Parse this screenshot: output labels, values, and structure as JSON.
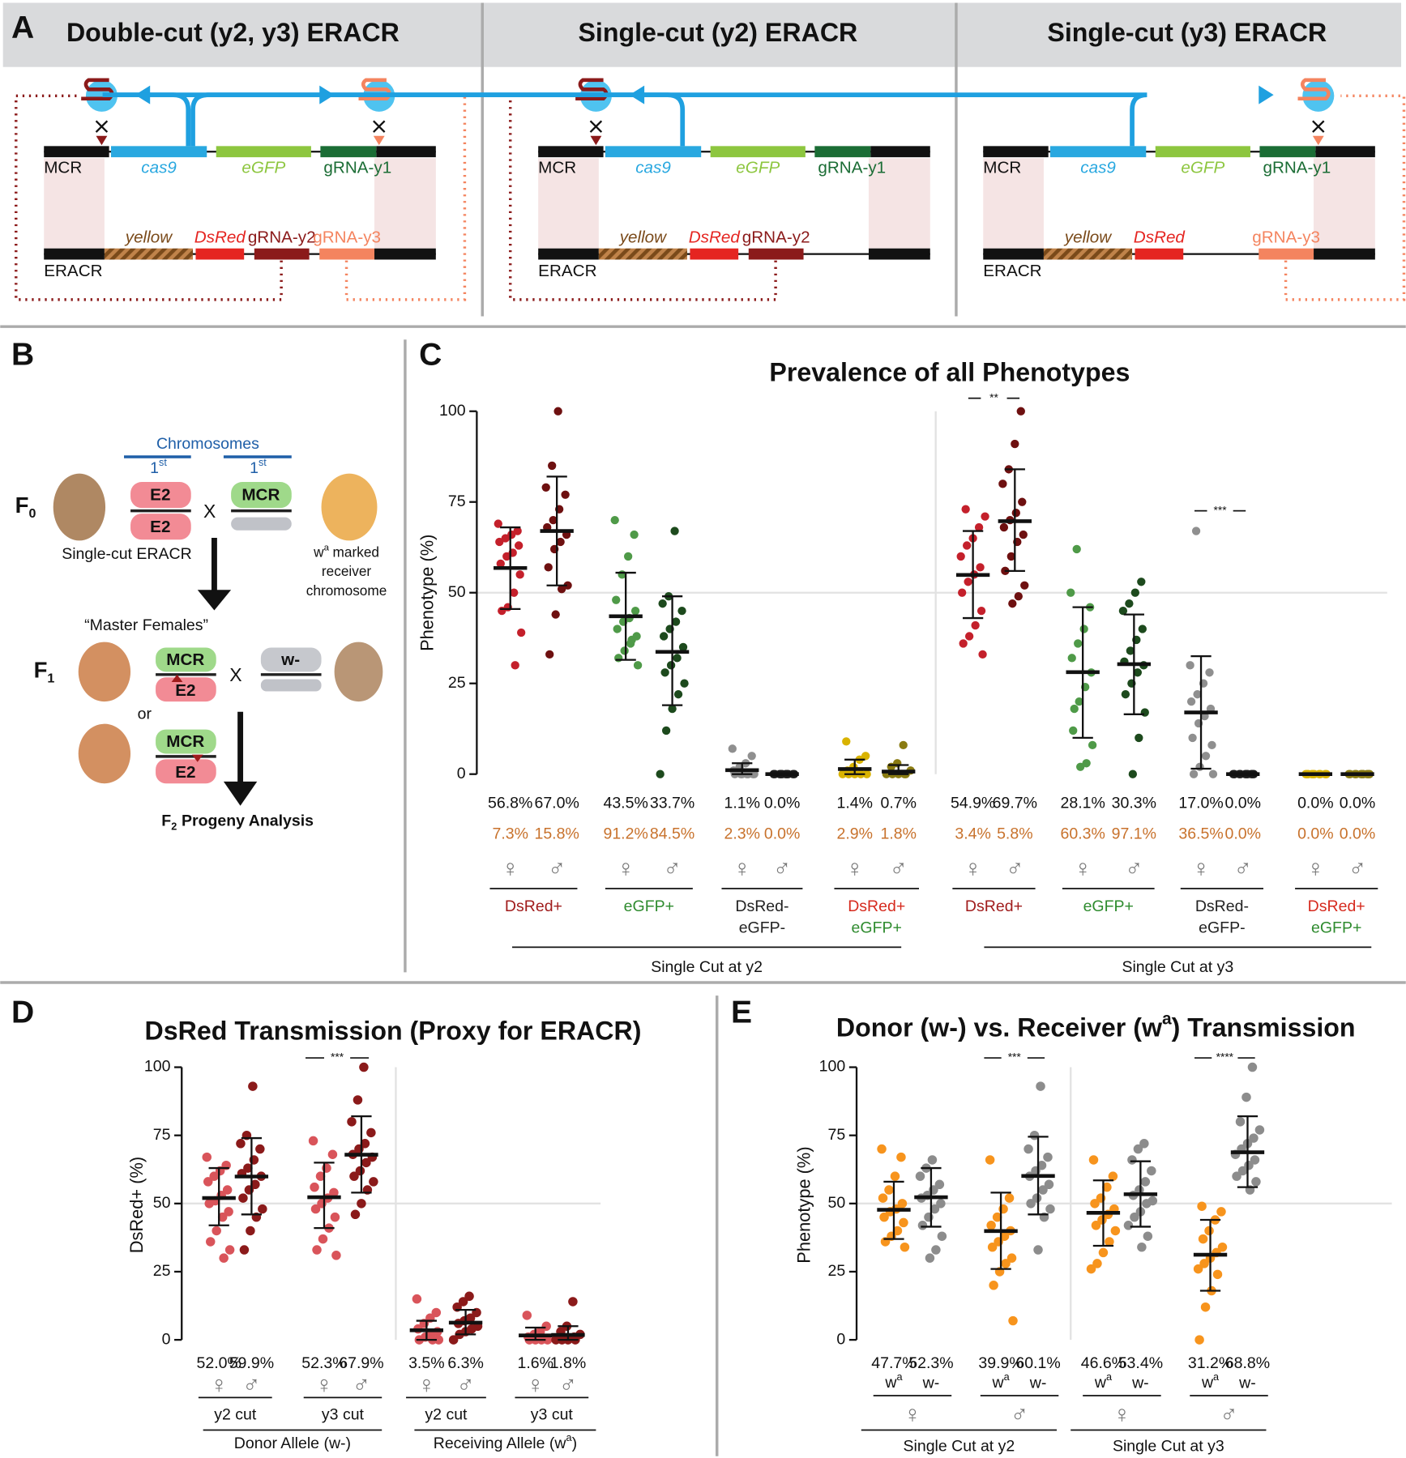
{
  "panel_a": {
    "label": "A",
    "panels": [
      {
        "title": "Double-cut (y2, y3) ERACR",
        "top_label": "MCR",
        "top_genes": [
          "cas9",
          "eGFP",
          "gRNA-y1"
        ],
        "bottom_label": "ERACR",
        "bottom_genes": [
          "yellow",
          "DsRed",
          "gRNA-y2",
          "gRNA-y3"
        ]
      },
      {
        "title": "Single-cut (y2) ERACR",
        "top_label": "MCR",
        "top_genes": [
          "cas9",
          "eGFP",
          "gRNA-y1"
        ],
        "bottom_label": "ERACR",
        "bottom_genes": [
          "yellow",
          "DsRed",
          "gRNA-y2",
          null
        ]
      },
      {
        "title": "Single-cut (y3) ERACR",
        "top_label": "MCR",
        "top_genes": [
          "cas9",
          "eGFP",
          "gRNA-y1"
        ],
        "bottom_label": "ERACR",
        "bottom_genes": [
          "yellow",
          "DsRed",
          null,
          "gRNA-y3"
        ]
      }
    ]
  },
  "panel_b": {
    "label": "B",
    "header": "Chromosomes",
    "ordinals": [
      [
        "1",
        "st"
      ],
      [
        "1",
        "st"
      ]
    ],
    "f0": [
      "F",
      "0"
    ],
    "f1": [
      "F",
      "1"
    ],
    "f2": [
      "F",
      "2",
      "Progeny Analysis"
    ],
    "e2": "E2",
    "mcr": "MCR",
    "cross": "X",
    "w_minus": "w-",
    "left_caption": "Single-cut ERACR",
    "right_caption": [
      "w",
      "a",
      "marked",
      "receiver",
      "chromosome"
    ],
    "master": "“Master Females”",
    "or": "or"
  },
  "chart_data": [
    {
      "type": "strip",
      "panel_label": "C",
      "title": "Prevalence of all Phenotypes",
      "ylabel": "Phenotype (%)",
      "ylim": [
        0,
        100
      ],
      "yticks": [
        0,
        25,
        50,
        75,
        100
      ],
      "reference_line": 50,
      "categories": [
        "♀",
        "♂",
        "♀",
        "♂",
        "♀",
        "♂",
        "♀",
        "♂",
        "♀",
        "♂",
        "♀",
        "♂",
        "♀",
        "♂",
        "♀",
        "♂"
      ],
      "colors": [
        "#c4202b",
        "#6e1010",
        "#4f9a48",
        "#1d4a1d",
        "#8f8f8f",
        "#1a1a1a",
        "#d9b300",
        "#8a7b12",
        "#c4202b",
        "#6e1010",
        "#4f9a48",
        "#1d4a1d",
        "#8f8f8f",
        "#1a1a1a",
        "#d9b300",
        "#8a7b12"
      ],
      "values": [
        56.8,
        67.0,
        43.5,
        33.7,
        1.1,
        0.0,
        1.4,
        0.7,
        54.9,
        69.7,
        28.1,
        30.3,
        17.0,
        0.0,
        0.0,
        0.0
      ],
      "value_labels": [
        "56.8%",
        "67.0%",
        "43.5%",
        "33.7%",
        "1.1%",
        "0.0%",
        "1.4%",
        "0.7%",
        "54.9%",
        "69.7%",
        "28.1%",
        "30.3%",
        "17.0%",
        "0.0%",
        "0.0%",
        "0.0%"
      ],
      "secondary_values": [
        7.3,
        15.8,
        91.2,
        84.5,
        2.3,
        0.0,
        2.9,
        1.8,
        3.4,
        5.8,
        60.3,
        97.1,
        36.5,
        0.0,
        0.0,
        0.0
      ],
      "secondary_labels": [
        "7.3%",
        "15.8%",
        "91.2%",
        "84.5%",
        "2.3%",
        "0.0%",
        "2.9%",
        "1.8%",
        "3.4%",
        "5.8%",
        "60.3%",
        "97.1%",
        "36.5%",
        "0.0%",
        "0.0%",
        "0.0%"
      ],
      "sd_low": [
        45.5,
        52,
        31.5,
        19,
        0,
        0,
        0,
        0,
        43,
        56,
        10,
        16.5,
        1.5,
        0,
        0,
        0
      ],
      "sd_high": [
        68,
        82,
        55.5,
        49,
        3,
        0,
        4,
        2.5,
        67,
        84,
        46,
        44,
        32.5,
        0,
        0,
        0
      ],
      "points": [
        [
          69,
          67,
          66,
          65,
          64,
          63,
          61,
          60,
          58,
          55,
          50,
          46,
          45,
          39,
          30
        ],
        [
          100,
          85,
          79,
          77,
          73,
          70,
          68,
          66,
          64,
          62,
          57,
          52,
          51,
          44,
          33
        ],
        [
          70,
          66,
          60,
          55,
          48,
          45,
          43,
          42,
          40,
          38,
          36,
          34,
          32,
          30,
          37
        ],
        [
          67,
          49,
          47,
          45,
          42,
          40,
          38,
          35,
          32,
          30,
          28,
          25,
          22,
          18,
          12,
          0
        ],
        [
          7,
          5,
          3,
          2,
          1,
          0,
          0,
          0,
          0,
          0,
          0,
          0
        ],
        [
          0,
          0,
          0,
          0,
          0,
          0,
          0,
          0,
          0,
          0
        ],
        [
          9,
          5,
          4,
          2,
          1,
          0,
          0,
          0,
          0,
          0
        ],
        [
          8,
          3,
          2,
          1,
          0,
          0,
          0,
          0,
          0
        ],
        [
          73,
          71,
          68,
          65,
          63,
          60,
          57,
          55,
          53,
          50,
          45,
          41,
          38,
          36,
          33
        ],
        [
          100,
          91,
          84,
          80,
          75,
          72,
          70,
          68,
          66,
          64,
          60,
          56,
          52,
          49,
          47
        ],
        [
          62,
          50,
          46,
          40,
          36,
          32,
          28,
          24,
          20,
          12,
          8,
          3,
          2,
          18
        ],
        [
          53,
          50,
          47,
          45,
          40,
          37,
          34,
          31,
          30,
          28,
          25,
          22,
          17,
          10,
          0
        ],
        [
          67,
          30,
          28,
          25,
          22,
          20,
          18,
          16,
          14,
          10,
          8,
          5,
          2,
          0,
          0
        ],
        [
          0,
          0,
          0,
          0,
          0,
          0,
          0,
          0,
          0,
          0
        ],
        [
          0,
          0,
          0,
          0,
          0,
          0,
          0,
          0,
          0,
          0
        ],
        [
          0,
          0,
          0,
          0,
          0,
          0,
          0,
          0,
          0,
          0
        ]
      ],
      "phenotypes": [
        [
          {
            "text": "DsRed+",
            "color": "#a01c1c"
          }
        ],
        [
          {
            "text": "eGFP+",
            "color": "#2e8b2e"
          }
        ],
        [
          {
            "text": "DsRed-",
            "color": "#222222"
          },
          {
            "text": "eGFP-",
            "color": "#222222"
          }
        ],
        [
          {
            "text": "DsRed+",
            "color": "#d62a1e"
          },
          {
            "text": "eGFP+",
            "color": "#2e8b2e"
          }
        ],
        [
          {
            "text": "DsRed+",
            "color": "#a01c1c"
          }
        ],
        [
          {
            "text": "eGFP+",
            "color": "#2e8b2e"
          }
        ],
        [
          {
            "text": "DsRed-",
            "color": "#222222"
          },
          {
            "text": "eGFP-",
            "color": "#222222"
          }
        ],
        [
          {
            "text": "DsRed+",
            "color": "#d62a1e"
          },
          {
            "text": "eGFP+",
            "color": "#2e8b2e"
          }
        ]
      ],
      "brackets": [
        "Single Cut at y2",
        "Single Cut at y3"
      ],
      "significance": [
        "**",
        "***"
      ]
    },
    {
      "type": "strip",
      "panel_label": "D",
      "title": "DsRed Transmission (Proxy for ERACR)",
      "ylabel": "DsRed+ (%)",
      "ylim": [
        0,
        100
      ],
      "yticks": [
        0,
        25,
        50,
        75,
        100
      ],
      "reference_line": 50,
      "categories": [
        "♀",
        "♂",
        "♀",
        "♂",
        "♀",
        "♂",
        "♀",
        "♂"
      ],
      "colors": [
        "#d9545a",
        "#8b1a1a",
        "#d9545a",
        "#8b1a1a",
        "#d9545a",
        "#8b1a1a",
        "#d9545a",
        "#8b1a1a"
      ],
      "values": [
        52.0,
        59.9,
        52.3,
        67.9,
        3.5,
        6.3,
        1.6,
        1.8
      ],
      "value_labels": [
        "52.0%",
        "59.9%",
        "52.3%",
        "67.9%",
        "3.5%",
        "6.3%",
        "1.6%",
        "1.8%"
      ],
      "sd_low": [
        42,
        46,
        41,
        54,
        0,
        2,
        0,
        0
      ],
      "sd_high": [
        63,
        74,
        65,
        82,
        7,
        11,
        4.5,
        5
      ],
      "points": [
        [
          67,
          64,
          62,
          60,
          58,
          55,
          53,
          51,
          50,
          47,
          45,
          40,
          36,
          33,
          30
        ],
        [
          93,
          75,
          72,
          70,
          66,
          63,
          61,
          60,
          57,
          55,
          52,
          48,
          45,
          40,
          33
        ],
        [
          73,
          68,
          63,
          60,
          56,
          54,
          52,
          50,
          48,
          45,
          41,
          37,
          33,
          31
        ],
        [
          100,
          88,
          80,
          76,
          72,
          70,
          68,
          67,
          65,
          62,
          60,
          58,
          55,
          50,
          46
        ],
        [
          15,
          10,
          8,
          6,
          4,
          3,
          2,
          1,
          0,
          0,
          0
        ],
        [
          16,
          14,
          12,
          10,
          8,
          7,
          6,
          5,
          4,
          3,
          2,
          0
        ],
        [
          9,
          5,
          3,
          2,
          1,
          0,
          0,
          0,
          0
        ],
        [
          14,
          5,
          3,
          2,
          1,
          0,
          0,
          0,
          0
        ]
      ],
      "subgroups": [
        "y2 cut",
        "y3 cut",
        "y2 cut",
        "y3 cut"
      ],
      "brackets": [
        "Donor Allele (w-)",
        [
          {
            "text": "Receiving Allele (w"
          },
          {
            "text": "a",
            "sup": true
          },
          {
            "text": ")"
          }
        ]
      ],
      "significance": [
        "***"
      ]
    },
    {
      "type": "strip",
      "panel_label": "E",
      "title": [
        {
          "text": "Donor (w-) vs. Receiver (w"
        },
        {
          "text": "a",
          "sup": true
        },
        {
          "text": ") Transmission"
        }
      ],
      "ylabel": "Phenotype (%)",
      "ylim": [
        0,
        100
      ],
      "yticks": [
        0,
        25,
        50,
        75,
        100
      ],
      "reference_line": 50,
      "categories": [
        [
          {
            "text": "w"
          },
          {
            "text": "a",
            "sup": true
          }
        ],
        "w-",
        [
          {
            "text": "w"
          },
          {
            "text": "a",
            "sup": true
          }
        ],
        "w-",
        [
          {
            "text": "w"
          },
          {
            "text": "a",
            "sup": true
          }
        ],
        "w-",
        [
          {
            "text": "w"
          },
          {
            "text": "a",
            "sup": true
          }
        ],
        "w-"
      ],
      "sexes": [
        "♀",
        "♂",
        "♀",
        "♂"
      ],
      "colors": [
        "#f7941d",
        "#8c8c8c",
        "#f7941d",
        "#8c8c8c",
        "#f7941d",
        "#8c8c8c",
        "#f7941d",
        "#8c8c8c"
      ],
      "values": [
        47.7,
        52.3,
        39.9,
        60.1,
        46.6,
        53.4,
        31.2,
        68.8
      ],
      "value_labels": [
        "47.7%",
        "52.3%",
        "39.9%",
        "60.1%",
        "46.6%",
        "53.4%",
        "31.2%",
        "68.8%"
      ],
      "sd_low": [
        37,
        41.5,
        26,
        46,
        34.5,
        41.5,
        18,
        56
      ],
      "sd_high": [
        58,
        63,
        54,
        74.5,
        58.5,
        65.5,
        44,
        82
      ],
      "points": [
        [
          70,
          67,
          60,
          55,
          52,
          50,
          48,
          47,
          45,
          43,
          40,
          38,
          36,
          34
        ],
        [
          66,
          63,
          60,
          57,
          55,
          53,
          52,
          50,
          48,
          45,
          42,
          38,
          33,
          30
        ],
        [
          66,
          52,
          48,
          45,
          42,
          40,
          38,
          36,
          34,
          30,
          28,
          25,
          20,
          7
        ],
        [
          93,
          75,
          70,
          67,
          64,
          62,
          60,
          57,
          55,
          52,
          50,
          48,
          45,
          33
        ],
        [
          66,
          60,
          56,
          52,
          50,
          48,
          46,
          44,
          42,
          40,
          36,
          32,
          28,
          26
        ],
        [
          72,
          70,
          66,
          62,
          58,
          55,
          53,
          51,
          50,
          47,
          45,
          42,
          38,
          34
        ],
        [
          49,
          47,
          44,
          40,
          37,
          34,
          32,
          30,
          28,
          26,
          24,
          18,
          12,
          0
        ],
        [
          100,
          89,
          80,
          77,
          74,
          72,
          70,
          68,
          66,
          64,
          62,
          60,
          58,
          55
        ]
      ],
      "brackets": [
        "Single Cut at y2",
        "Single Cut at y3"
      ],
      "significance": [
        "***",
        "****"
      ]
    }
  ]
}
